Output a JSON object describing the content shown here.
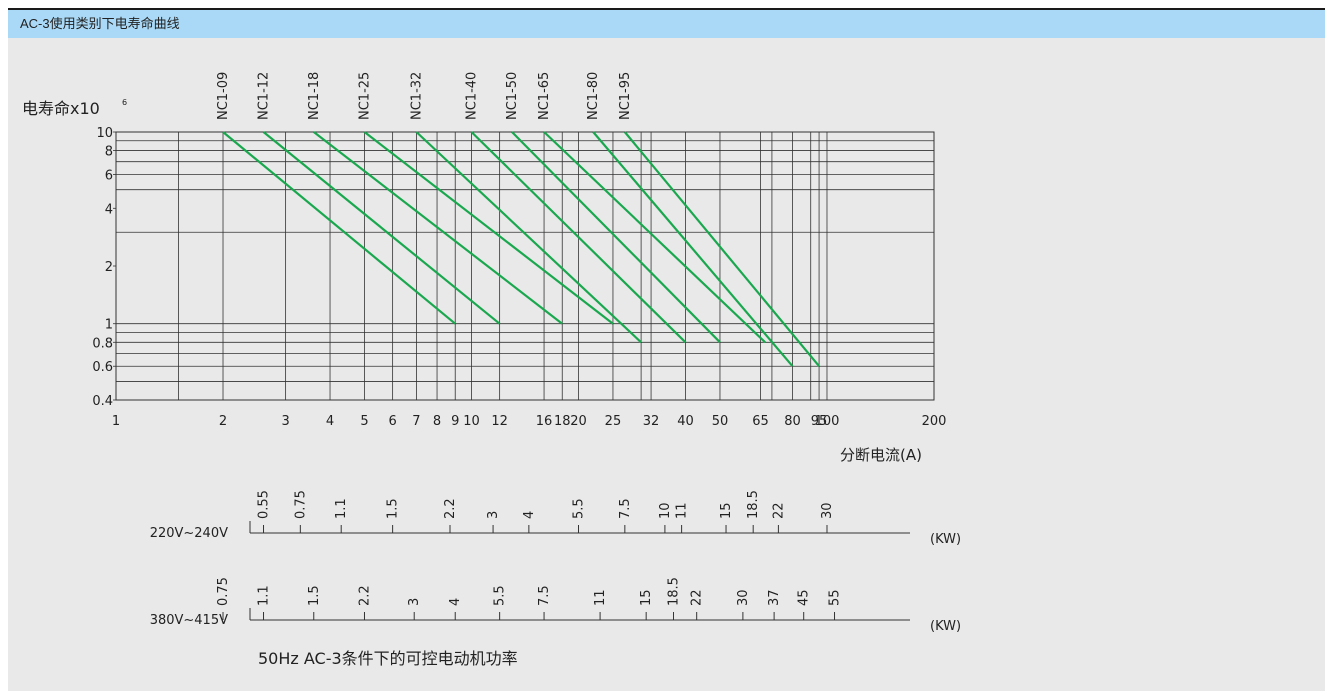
{
  "header": {
    "title": "AC-3使用类别下电寿命曲线"
  },
  "chart_data": {
    "type": "line",
    "title": "",
    "ylabel": "电寿命x10",
    "ylabel_sup": "6",
    "xlabel": "分断电流(A)",
    "x_scale": "log",
    "y_scale": "log",
    "xlim": [
      1,
      200
    ],
    "ylim": [
      0.4,
      10
    ],
    "grid": true,
    "x_gridlines": [
      1,
      1.5,
      2,
      3,
      4,
      5,
      6,
      7,
      8,
      9,
      10,
      12,
      16,
      18,
      20,
      25,
      30,
      32,
      40,
      50,
      65,
      70,
      80,
      90,
      95,
      100,
      200
    ],
    "y_gridlines": [
      0.4,
      0.5,
      0.6,
      0.7,
      0.8,
      0.9,
      1,
      3,
      5,
      6,
      7,
      8,
      9,
      10
    ],
    "x_ticks": [
      "1",
      "2",
      "3",
      "4",
      "5",
      "6",
      "7",
      "8",
      "9",
      "10",
      "12",
      "16",
      "18",
      "20",
      "25",
      "32",
      "40",
      "50",
      "65",
      "80",
      "95",
      "100",
      "200"
    ],
    "y_ticks": [
      "0.4",
      "0.6",
      "0.8",
      "1",
      "2",
      "4",
      "6",
      "8",
      "10"
    ],
    "line_color": "#1aa84f",
    "series": [
      {
        "name": "NC1-09",
        "x": [
          2,
          9
        ],
        "y": [
          10,
          1
        ]
      },
      {
        "name": "NC1-12",
        "x": [
          2.6,
          12
        ],
        "y": [
          10,
          1
        ]
      },
      {
        "name": "NC1-18",
        "x": [
          3.6,
          18
        ],
        "y": [
          10,
          1
        ]
      },
      {
        "name": "NC1-25",
        "x": [
          5,
          25
        ],
        "y": [
          10,
          1
        ]
      },
      {
        "name": "NC1-32",
        "x": [
          7,
          30
        ],
        "y": [
          10,
          0.8
        ]
      },
      {
        "name": "NC1-40",
        "x": [
          10,
          40
        ],
        "y": [
          10,
          0.8
        ]
      },
      {
        "name": "NC1-50",
        "x": [
          13,
          50
        ],
        "y": [
          10,
          0.8
        ]
      },
      {
        "name": "NC1-65",
        "x": [
          16,
          67
        ],
        "y": [
          10,
          0.8
        ]
      },
      {
        "name": "NC1-80",
        "x": [
          22,
          80
        ],
        "y": [
          10,
          0.6
        ]
      },
      {
        "name": "NC1-95",
        "x": [
          27,
          95
        ],
        "y": [
          10,
          0.6
        ]
      }
    ]
  },
  "power_scales": {
    "caption": "50Hz  AC-3条件下的可控电动机功率",
    "unit": "(KW)",
    "rows": [
      {
        "label": "220V~240V",
        "ticks": [
          {
            "label": "0.55",
            "a": 2.6
          },
          {
            "label": "0.75",
            "a": 3.3
          },
          {
            "label": "1.1",
            "a": 4.3
          },
          {
            "label": "1.5",
            "a": 6
          },
          {
            "label": "2.2",
            "a": 8.7
          },
          {
            "label": "3",
            "a": 11.5
          },
          {
            "label": "4",
            "a": 14.5
          },
          {
            "label": "5.5",
            "a": 20
          },
          {
            "label": "7.5",
            "a": 27
          },
          {
            "label": "10",
            "a": 35
          },
          {
            "label": "11",
            "a": 39
          },
          {
            "label": "15",
            "a": 52
          },
          {
            "label": "18.5",
            "a": 62
          },
          {
            "label": "22",
            "a": 73
          },
          {
            "label": "30",
            "a": 100
          }
        ]
      },
      {
        "label": "380V~415V",
        "ticks": [
          {
            "label": "0.75",
            "a": 2
          },
          {
            "label": "1.1",
            "a": 2.6
          },
          {
            "label": "1.5",
            "a": 3.6
          },
          {
            "label": "2.2",
            "a": 5
          },
          {
            "label": "3",
            "a": 6.9
          },
          {
            "label": "4",
            "a": 9
          },
          {
            "label": "5.5",
            "a": 12
          },
          {
            "label": "7.5",
            "a": 16
          },
          {
            "label": "11",
            "a": 23
          },
          {
            "label": "15",
            "a": 31
          },
          {
            "label": "18.5",
            "a": 37
          },
          {
            "label": "22",
            "a": 43
          },
          {
            "label": "30",
            "a": 58
          },
          {
            "label": "37",
            "a": 71
          },
          {
            "label": "45",
            "a": 86
          },
          {
            "label": "55",
            "a": 105
          }
        ]
      }
    ]
  }
}
